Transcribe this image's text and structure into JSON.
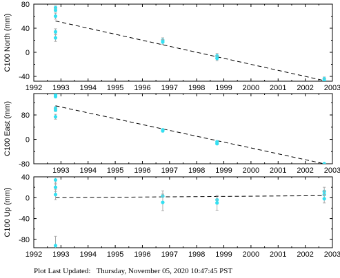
{
  "footer": {
    "label": "Plot Last Updated:",
    "timestamp": "Thursday, November 05, 2020 10:47:45 PST"
  },
  "colors": {
    "point": "#33e0f2",
    "errorbar": "#aaaaaa",
    "trend": "#000000",
    "frame": "#000000"
  },
  "chart_data": [
    {
      "type": "scatter",
      "title": "",
      "ylabel": "C100 North (mm)",
      "xlabel": "",
      "xlim": [
        1992,
        2003
      ],
      "ylim": [
        -48,
        80
      ],
      "xticks": [
        "1992",
        "1993",
        "1994",
        "1995",
        "1996",
        "1997",
        "1998",
        "1999",
        "2000",
        "2001",
        "2002",
        "2003"
      ],
      "yticks": [
        "-40",
        "0",
        "40",
        "80"
      ],
      "grid": false,
      "points": [
        {
          "x": 1992.8,
          "y": 74,
          "err": 3
        },
        {
          "x": 1992.8,
          "y": 70,
          "err": 3
        },
        {
          "x": 1992.8,
          "y": 60,
          "err": 5
        },
        {
          "x": 1992.8,
          "y": 34,
          "err": 5
        },
        {
          "x": 1992.8,
          "y": 24,
          "err": 6
        },
        {
          "x": 1996.75,
          "y": 20,
          "err": 4
        },
        {
          "x": 1996.75,
          "y": 17,
          "err": 4
        },
        {
          "x": 1998.75,
          "y": -6,
          "err": 4
        },
        {
          "x": 1998.75,
          "y": -10,
          "err": 4
        },
        {
          "x": 2002.7,
          "y": -44,
          "err": 3
        },
        {
          "x": 2002.7,
          "y": -47,
          "err": 3
        }
      ],
      "trend": [
        [
          1992.8,
          52
        ],
        [
          2002.7,
          -47
        ]
      ]
    },
    {
      "type": "scatter",
      "title": "",
      "ylabel": "C100 East (mm)",
      "xlabel": "",
      "xlim": [
        1992,
        2003
      ],
      "ylim": [
        -80,
        150
      ],
      "xticks": [
        "1993",
        "1994",
        "1995",
        "1996",
        "1997",
        "1998",
        "1999",
        "2000",
        "2001",
        "2002",
        "2003"
      ],
      "yticks": [
        "-80",
        "0",
        "80"
      ],
      "grid": false,
      "points": [
        {
          "x": 1992.8,
          "y": 146,
          "err": 3
        },
        {
          "x": 1992.8,
          "y": 140,
          "err": 3
        },
        {
          "x": 1992.8,
          "y": 102,
          "err": 5
        },
        {
          "x": 1992.8,
          "y": 96,
          "err": 5
        },
        {
          "x": 1992.8,
          "y": 74,
          "err": 8
        },
        {
          "x": 1996.75,
          "y": 31,
          "err": 4
        },
        {
          "x": 1996.75,
          "y": 28,
          "err": 4
        },
        {
          "x": 1998.75,
          "y": -8,
          "err": 4
        },
        {
          "x": 1998.75,
          "y": -14,
          "err": 4
        },
        {
          "x": 2002.7,
          "y": -80,
          "err": 3
        }
      ],
      "trend": [
        [
          1992.8,
          110
        ],
        [
          2002.7,
          -80
        ]
      ]
    },
    {
      "type": "scatter",
      "title": "",
      "ylabel": "C100 Up (mm)",
      "xlabel": "",
      "xlim": [
        1992,
        2003
      ],
      "ylim": [
        -96,
        40
      ],
      "xticks": [
        "1992",
        "1993",
        "1994",
        "1995",
        "1996",
        "1997",
        "1998",
        "1999",
        "2000",
        "2001",
        "2002",
        "2003"
      ],
      "yticks": [
        "-80",
        "-40",
        "0",
        "40"
      ],
      "grid": false,
      "points": [
        {
          "x": 1992.8,
          "y": 34,
          "err": 8
        },
        {
          "x": 1992.8,
          "y": 20,
          "err": 8
        },
        {
          "x": 1992.8,
          "y": 6,
          "err": 10
        },
        {
          "x": 1992.8,
          "y": -92,
          "err": 18
        },
        {
          "x": 1996.75,
          "y": 3,
          "err": 10
        },
        {
          "x": 1996.75,
          "y": -9,
          "err": 16
        },
        {
          "x": 1998.75,
          "y": -4,
          "err": 8
        },
        {
          "x": 1998.75,
          "y": -10,
          "err": 14
        },
        {
          "x": 2002.7,
          "y": 12,
          "err": 8
        },
        {
          "x": 2002.7,
          "y": 6,
          "err": 8
        },
        {
          "x": 2002.7,
          "y": -2,
          "err": 8
        }
      ],
      "trend": [
        [
          1992.8,
          0
        ],
        [
          2002.7,
          4
        ]
      ]
    }
  ]
}
